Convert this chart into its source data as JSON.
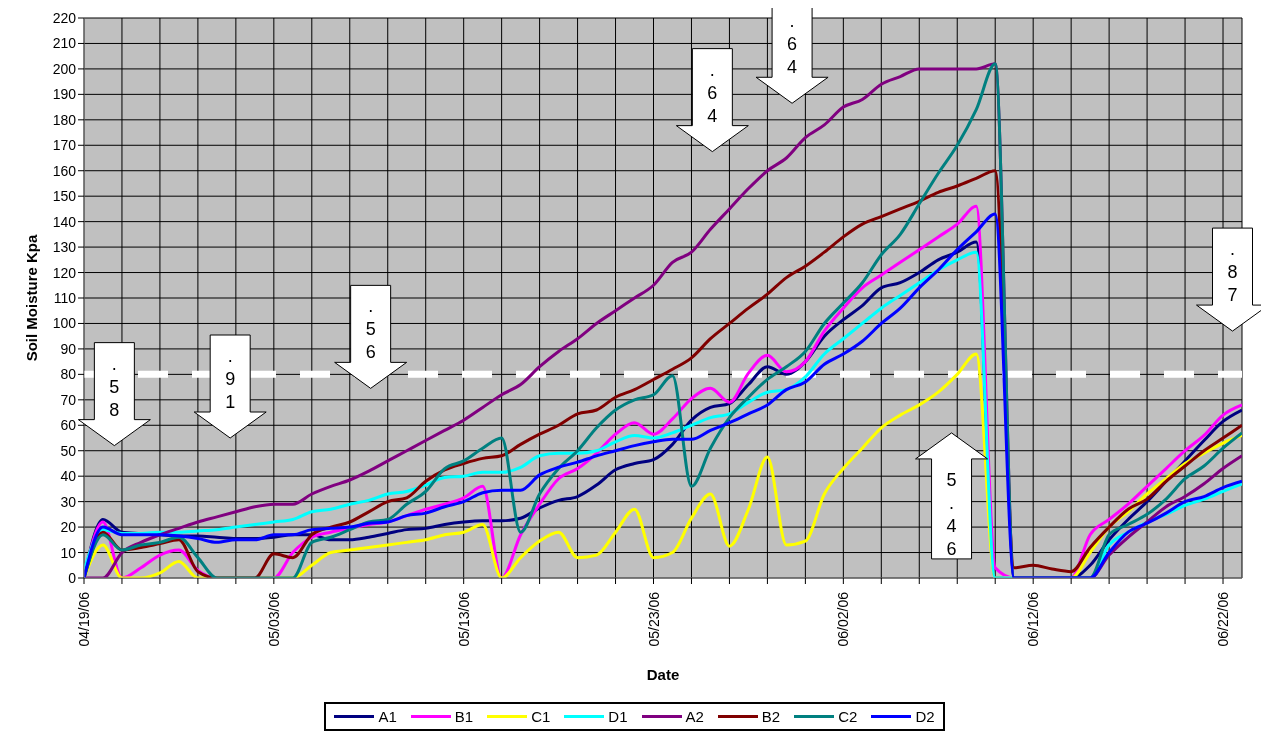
{
  "chart_data": {
    "type": "line",
    "xlabel": "Date",
    "ylabel": "Soil Moisture Kpa",
    "categories": [
      "04/19/06",
      null,
      null,
      null,
      null,
      null,
      null,
      null,
      null,
      null,
      "05/03/06",
      null,
      null,
      null,
      null,
      null,
      null,
      null,
      null,
      null,
      "05/13/06",
      null,
      null,
      null,
      null,
      null,
      null,
      null,
      null,
      null,
      "05/23/06",
      null,
      null,
      null,
      null,
      null,
      null,
      null,
      null,
      null,
      "06/02/06",
      null,
      null,
      null,
      null,
      null,
      null,
      null,
      null,
      null,
      "06/12/06",
      null,
      null,
      null,
      null,
      null,
      null,
      null,
      null,
      null,
      "06/22/06",
      null
    ],
    "series": [
      {
        "name": "A1",
        "color": "#000080",
        "values": [
          0,
          23,
          18,
          17.5,
          17,
          16.5,
          16.5,
          16,
          15.5,
          15.5,
          16,
          17,
          17,
          15,
          15,
          16,
          17.5,
          19,
          19.5,
          21,
          22,
          22.5,
          22.5,
          23.5,
          27.5,
          30.5,
          32,
          36.5,
          42.5,
          45,
          46.5,
          52.5,
          62,
          67,
          68.5,
          76,
          83,
          80,
          85,
          95,
          101.5,
          107,
          114,
          116,
          120,
          125,
          128,
          132,
          0,
          0,
          0,
          0,
          0,
          5,
          15,
          23,
          30,
          38,
          46,
          54,
          61.5,
          66
        ]
      },
      {
        "name": "B1",
        "color": "#ff00ff",
        "values": [
          0,
          22,
          0,
          4,
          9,
          11,
          3,
          0,
          0,
          0,
          0,
          10,
          16,
          18,
          19.5,
          21,
          22,
          24.5,
          27,
          29,
          31.5,
          36,
          0,
          17,
          29,
          39,
          43,
          49,
          56.5,
          61,
          56.5,
          62.5,
          70.5,
          74.5,
          69,
          80.5,
          87.5,
          81,
          85,
          97,
          106,
          114,
          119,
          124,
          129,
          134,
          139,
          146,
          4,
          0,
          0,
          0,
          0,
          17,
          23,
          29,
          36,
          43,
          50,
          56,
          64,
          68
        ]
      },
      {
        "name": "C1",
        "color": "#ffff00",
        "values": [
          0,
          13,
          0,
          0,
          2,
          6.5,
          0,
          0,
          0,
          0,
          0,
          0,
          5,
          10,
          11,
          12,
          13,
          14,
          15,
          17,
          18,
          21,
          0,
          8,
          14.5,
          18,
          8,
          9,
          18,
          27,
          8,
          10,
          23.5,
          33,
          12.5,
          27,
          47.5,
          13,
          14.5,
          33,
          43,
          51,
          59,
          64,
          68,
          73,
          80,
          88,
          0,
          0,
          0,
          0,
          0,
          10,
          20,
          26,
          33,
          39,
          45,
          49,
          53,
          56
        ]
      },
      {
        "name": "D1",
        "color": "#00ffff",
        "values": [
          3,
          19,
          17.5,
          17.5,
          18,
          18,
          18.5,
          19,
          20,
          21,
          22,
          23,
          26,
          27,
          29,
          30.5,
          33,
          34,
          36.5,
          39.5,
          40,
          41.5,
          41.5,
          43.5,
          48,
          49,
          49,
          50,
          53.5,
          56,
          55,
          57,
          60,
          63,
          64.5,
          69,
          73,
          74,
          79,
          88,
          94,
          100,
          106,
          111,
          116,
          121,
          125,
          128,
          0,
          0,
          0,
          0,
          0,
          0,
          13,
          18,
          22,
          25,
          28.5,
          31,
          34,
          37
        ]
      },
      {
        "name": "A2",
        "color": "#800080",
        "values": [
          0,
          0,
          10,
          14,
          17,
          19.5,
          22,
          24,
          26,
          28,
          29,
          29,
          33,
          36,
          38.5,
          42,
          46,
          50,
          54,
          58,
          62,
          67,
          72,
          76,
          83,
          89,
          94,
          100,
          105,
          110,
          115,
          124,
          128,
          137,
          145,
          153,
          160,
          165,
          173,
          178,
          185,
          188,
          194,
          197,
          200,
          200,
          200,
          200,
          202,
          0,
          0,
          0,
          0,
          0,
          9,
          16,
          22,
          28,
          32,
          37,
          43,
          48
        ]
      },
      {
        "name": "B2",
        "color": "#800000",
        "values": [
          0,
          18,
          11,
          12,
          13.5,
          15,
          2.5,
          0,
          0,
          0,
          9.5,
          8,
          17,
          20,
          22,
          26,
          30,
          31.5,
          38,
          42.5,
          45,
          47,
          48,
          52.5,
          56.5,
          60,
          64.5,
          66,
          71,
          74,
          78,
          82,
          86.5,
          94,
          100,
          106,
          111.5,
          118,
          122.5,
          128,
          134,
          139,
          142,
          145,
          148,
          151.5,
          154,
          157,
          160,
          4,
          5,
          3.5,
          2.5,
          12,
          20,
          27,
          31,
          38,
          44,
          50,
          55,
          60
        ]
      },
      {
        "name": "C2",
        "color": "#008080",
        "values": [
          0,
          17,
          11,
          13,
          14,
          16,
          8,
          0,
          0,
          0,
          0,
          0,
          14,
          16,
          19,
          22,
          23,
          29,
          34,
          43,
          46,
          51,
          55,
          18,
          33,
          43,
          50,
          59,
          66,
          70,
          72,
          79.5,
          36,
          51,
          63,
          71,
          78,
          83,
          89,
          100,
          108,
          116,
          127,
          135,
          147,
          159,
          170,
          184,
          202,
          0,
          0,
          0,
          0,
          0,
          17,
          21,
          25,
          31,
          39,
          44,
          51,
          57
        ]
      },
      {
        "name": "D2",
        "color": "#0000ff",
        "values": [
          0,
          20,
          17,
          17,
          17,
          16.5,
          15.5,
          14,
          15,
          15,
          17,
          17,
          19,
          19.5,
          20,
          21.5,
          22,
          24.5,
          25.5,
          28,
          30,
          33.5,
          34.5,
          34.5,
          40.5,
          43.5,
          45.5,
          48,
          50,
          52,
          53.5,
          54.5,
          54.5,
          58,
          61,
          64.5,
          68,
          74,
          77,
          84,
          88,
          93,
          100,
          106,
          114,
          121,
          129,
          136,
          143,
          0,
          0,
          0,
          0,
          0,
          10,
          18,
          21.5,
          25.5,
          30,
          32,
          35.5,
          38
        ]
      }
    ],
    "ylim": [
      0,
      220
    ],
    "yticks": [
      0,
      10,
      20,
      30,
      40,
      50,
      60,
      70,
      80,
      90,
      100,
      110,
      120,
      130,
      140,
      150,
      160,
      170,
      180,
      190,
      200,
      210,
      220
    ],
    "ref_lines": [
      {
        "axis": "y",
        "value": 80,
        "color": "#ffffff",
        "line_style": "dashed"
      }
    ],
    "annotations": [
      ".58",
      ".91",
      ".56",
      ".64",
      ".64",
      "5.46",
      ".87"
    ],
    "grid": true,
    "legend": "bottom",
    "marker": "none",
    "line_style": "solid"
  }
}
